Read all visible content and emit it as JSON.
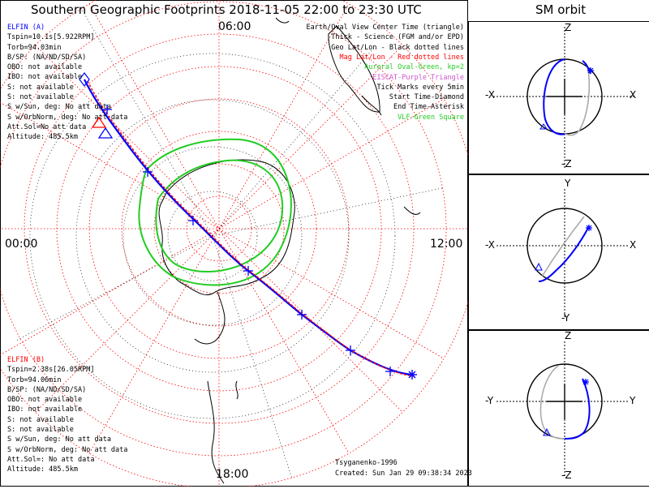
{
  "title": "Southern Geographic Footprints 2018-11-05 22:00 to 23:30 UTC",
  "orbit_title": "SM orbit",
  "clock_labels": {
    "top": "06:00",
    "left": "00:00",
    "right": "12:00",
    "bottom": "18:00"
  },
  "elfin_a": {
    "name": "ELFIN (A)",
    "lines": [
      "Tspin=10.1s[5.922RPM]",
      "Torb=94.03min",
      "B/SP: (NA/ND/SD/SA)",
      "OBO: not available",
      "IBO: not available",
      "S: not available",
      "S: not available",
      "S w/Sun, deg: No att data",
      "S w/OrbNorm, deg: No att data",
      "Att.Sol=No att data",
      "Altitude: 485.5km"
    ]
  },
  "elfin_b": {
    "name": "ELFIN (B)",
    "lines": [
      "Tspin=2.38s[26.05RPM]",
      "Torb=94.06min",
      "B/SP: (NA/ND/SD/SA)",
      "OBO: not available",
      "IBO: not available",
      "S: not available",
      "S: not available",
      "S w/Sun, deg: No att data",
      "S w/OrbNorm, deg: No att data",
      "Att.Sol=: No att data",
      "Altitude: 485.5km"
    ]
  },
  "legend": [
    {
      "text": "Earth/Oval View Center Time (triangle)",
      "color": "#000000"
    },
    {
      "text": "Thick - Science (FGM and/or EPD)",
      "color": "#000000"
    },
    {
      "text": "Geo Lat/Lon - Black dotted lines",
      "color": "#000000"
    },
    {
      "text": "Mag Lat/Lon - Red dotted lines",
      "color": "#ff0000"
    },
    {
      "text": "Auroral Oval-Green, kp=2",
      "color": "#22cc22"
    },
    {
      "text": "EISCAT-Purple Triangle",
      "color": "#cc55cc"
    },
    {
      "text": "Tick Marks every 5min",
      "color": "#000000"
    },
    {
      "text": "Start Time-Diamond",
      "color": "#000000"
    },
    {
      "text": "End Time-Asterisk",
      "color": "#000000"
    },
    {
      "text": "VLF-Green Square",
      "color": "#22cc22"
    }
  ],
  "footer": {
    "model": "Tsyganenko-1996",
    "created": "Created: Sun Jan 29 09:38:34 2023"
  },
  "orbit_panels": [
    {
      "top": "Z",
      "bottom": "-Z",
      "left": "-X",
      "right": "X"
    },
    {
      "top": "Y",
      "bottom": "-Y",
      "left": "-X",
      "right": "X"
    },
    {
      "top": "Z",
      "bottom": "-Z",
      "left": "-Y",
      "right": "Y"
    }
  ],
  "colors": {
    "elfin_a": "#0000ff",
    "elfin_b": "#ff0000",
    "oval": "#22cc22",
    "mag_grid": "#ff0000",
    "geo_grid": "#000000"
  }
}
